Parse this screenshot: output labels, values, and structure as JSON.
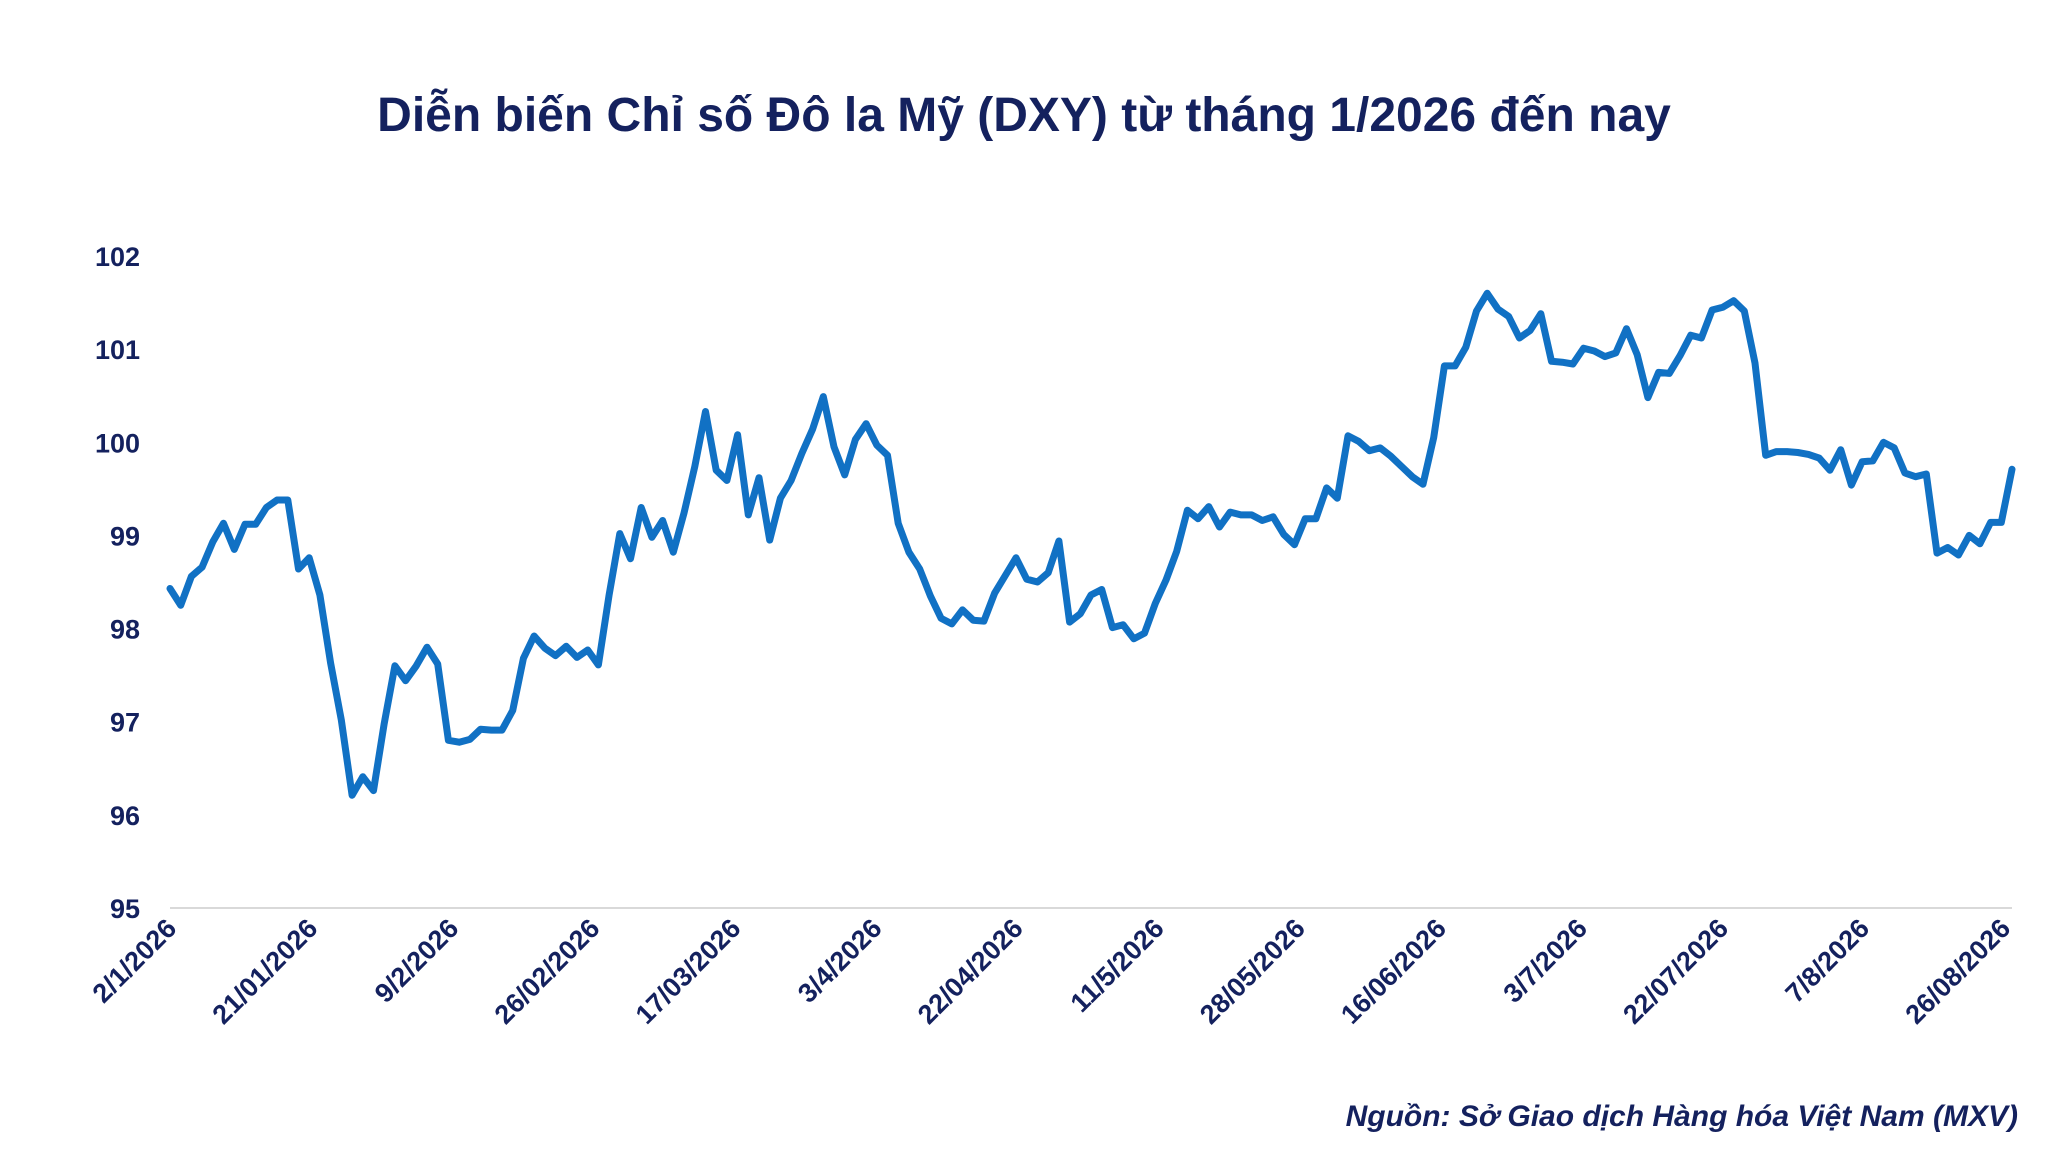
{
  "chart_data": {
    "type": "line",
    "title": "Diễn biến Chỉ số Đô la Mỹ (DXY) từ tháng 1/2026 đến nay",
    "xlabel": "",
    "ylabel": "",
    "ylim": [
      95,
      102
    ],
    "yticks": [
      "95",
      "96",
      "97",
      "98",
      "99",
      "100",
      "101",
      "102"
    ],
    "xtick_labels": [
      "2/1/2026",
      "21/01/2026",
      "9/2/2026",
      "26/02/2026",
      "17/03/2026",
      "3/4/2026",
      "22/04/2026",
      "11/5/2026",
      "28/05/2026",
      "16/06/2026",
      "3/7/2026",
      "22/07/2026",
      "7/8/2026",
      "26/08/2026"
    ],
    "line_color": "#1171c4",
    "series": [
      {
        "values": [
          98.43,
          98.25,
          98.56,
          98.66,
          98.93,
          99.13,
          98.85,
          99.12,
          99.12,
          99.3,
          99.38,
          99.38,
          98.64,
          98.76,
          98.36,
          97.63,
          97.02,
          96.21,
          96.41,
          96.26,
          96.98,
          97.6,
          97.44,
          97.6,
          97.8,
          97.62,
          96.8,
          96.78,
          96.81,
          96.92,
          96.91,
          96.91,
          97.12,
          97.68,
          97.92,
          97.79,
          97.71,
          97.81,
          97.69,
          97.77,
          97.61,
          98.36,
          99.02,
          98.75,
          99.3,
          98.98,
          99.16,
          98.82,
          99.24,
          99.74,
          100.33,
          99.7,
          99.59,
          100.08,
          99.22,
          99.62,
          98.95,
          99.4,
          99.59,
          99.88,
          100.14,
          100.49,
          99.95,
          99.65,
          100.03,
          100.2,
          99.97,
          99.86,
          99.13,
          98.82,
          98.64,
          98.35,
          98.11,
          98.05,
          98.2,
          98.09,
          98.08,
          98.38,
          98.57,
          98.76,
          98.53,
          98.5,
          98.6,
          98.94,
          98.07,
          98.16,
          98.36,
          98.42,
          98.01,
          98.04,
          97.89,
          97.95,
          98.27,
          98.52,
          98.83,
          99.27,
          99.18,
          99.31,
          99.09,
          99.25,
          99.22,
          99.22,
          99.16,
          99.2,
          99.01,
          98.9,
          99.18,
          99.18,
          99.51,
          99.4,
          100.07,
          100.01,
          99.91,
          99.94,
          99.85,
          99.74,
          99.63,
          99.55,
          100.05,
          100.82,
          100.82,
          101.02,
          101.41,
          101.6,
          101.43,
          101.35,
          101.12,
          101.2,
          101.38,
          100.87,
          100.86,
          100.84,
          101.01,
          100.98,
          100.92,
          100.96,
          101.22,
          100.94,
          100.48,
          100.75,
          100.74,
          100.93,
          101.15,
          101.12,
          101.42,
          101.45,
          101.52,
          101.41,
          100.85,
          99.86,
          99.9,
          99.9,
          99.89,
          99.87,
          99.83,
          99.7,
          99.92,
          99.54,
          99.79,
          99.8,
          100.0,
          99.94,
          99.67,
          99.63,
          99.66,
          98.81,
          98.87,
          98.79,
          99.0,
          98.91,
          99.14,
          99.14,
          99.71
        ]
      }
    ]
  },
  "source_text": "Nguồn: Sở Giao dịch Hàng hóa Việt Nam (MXV)"
}
